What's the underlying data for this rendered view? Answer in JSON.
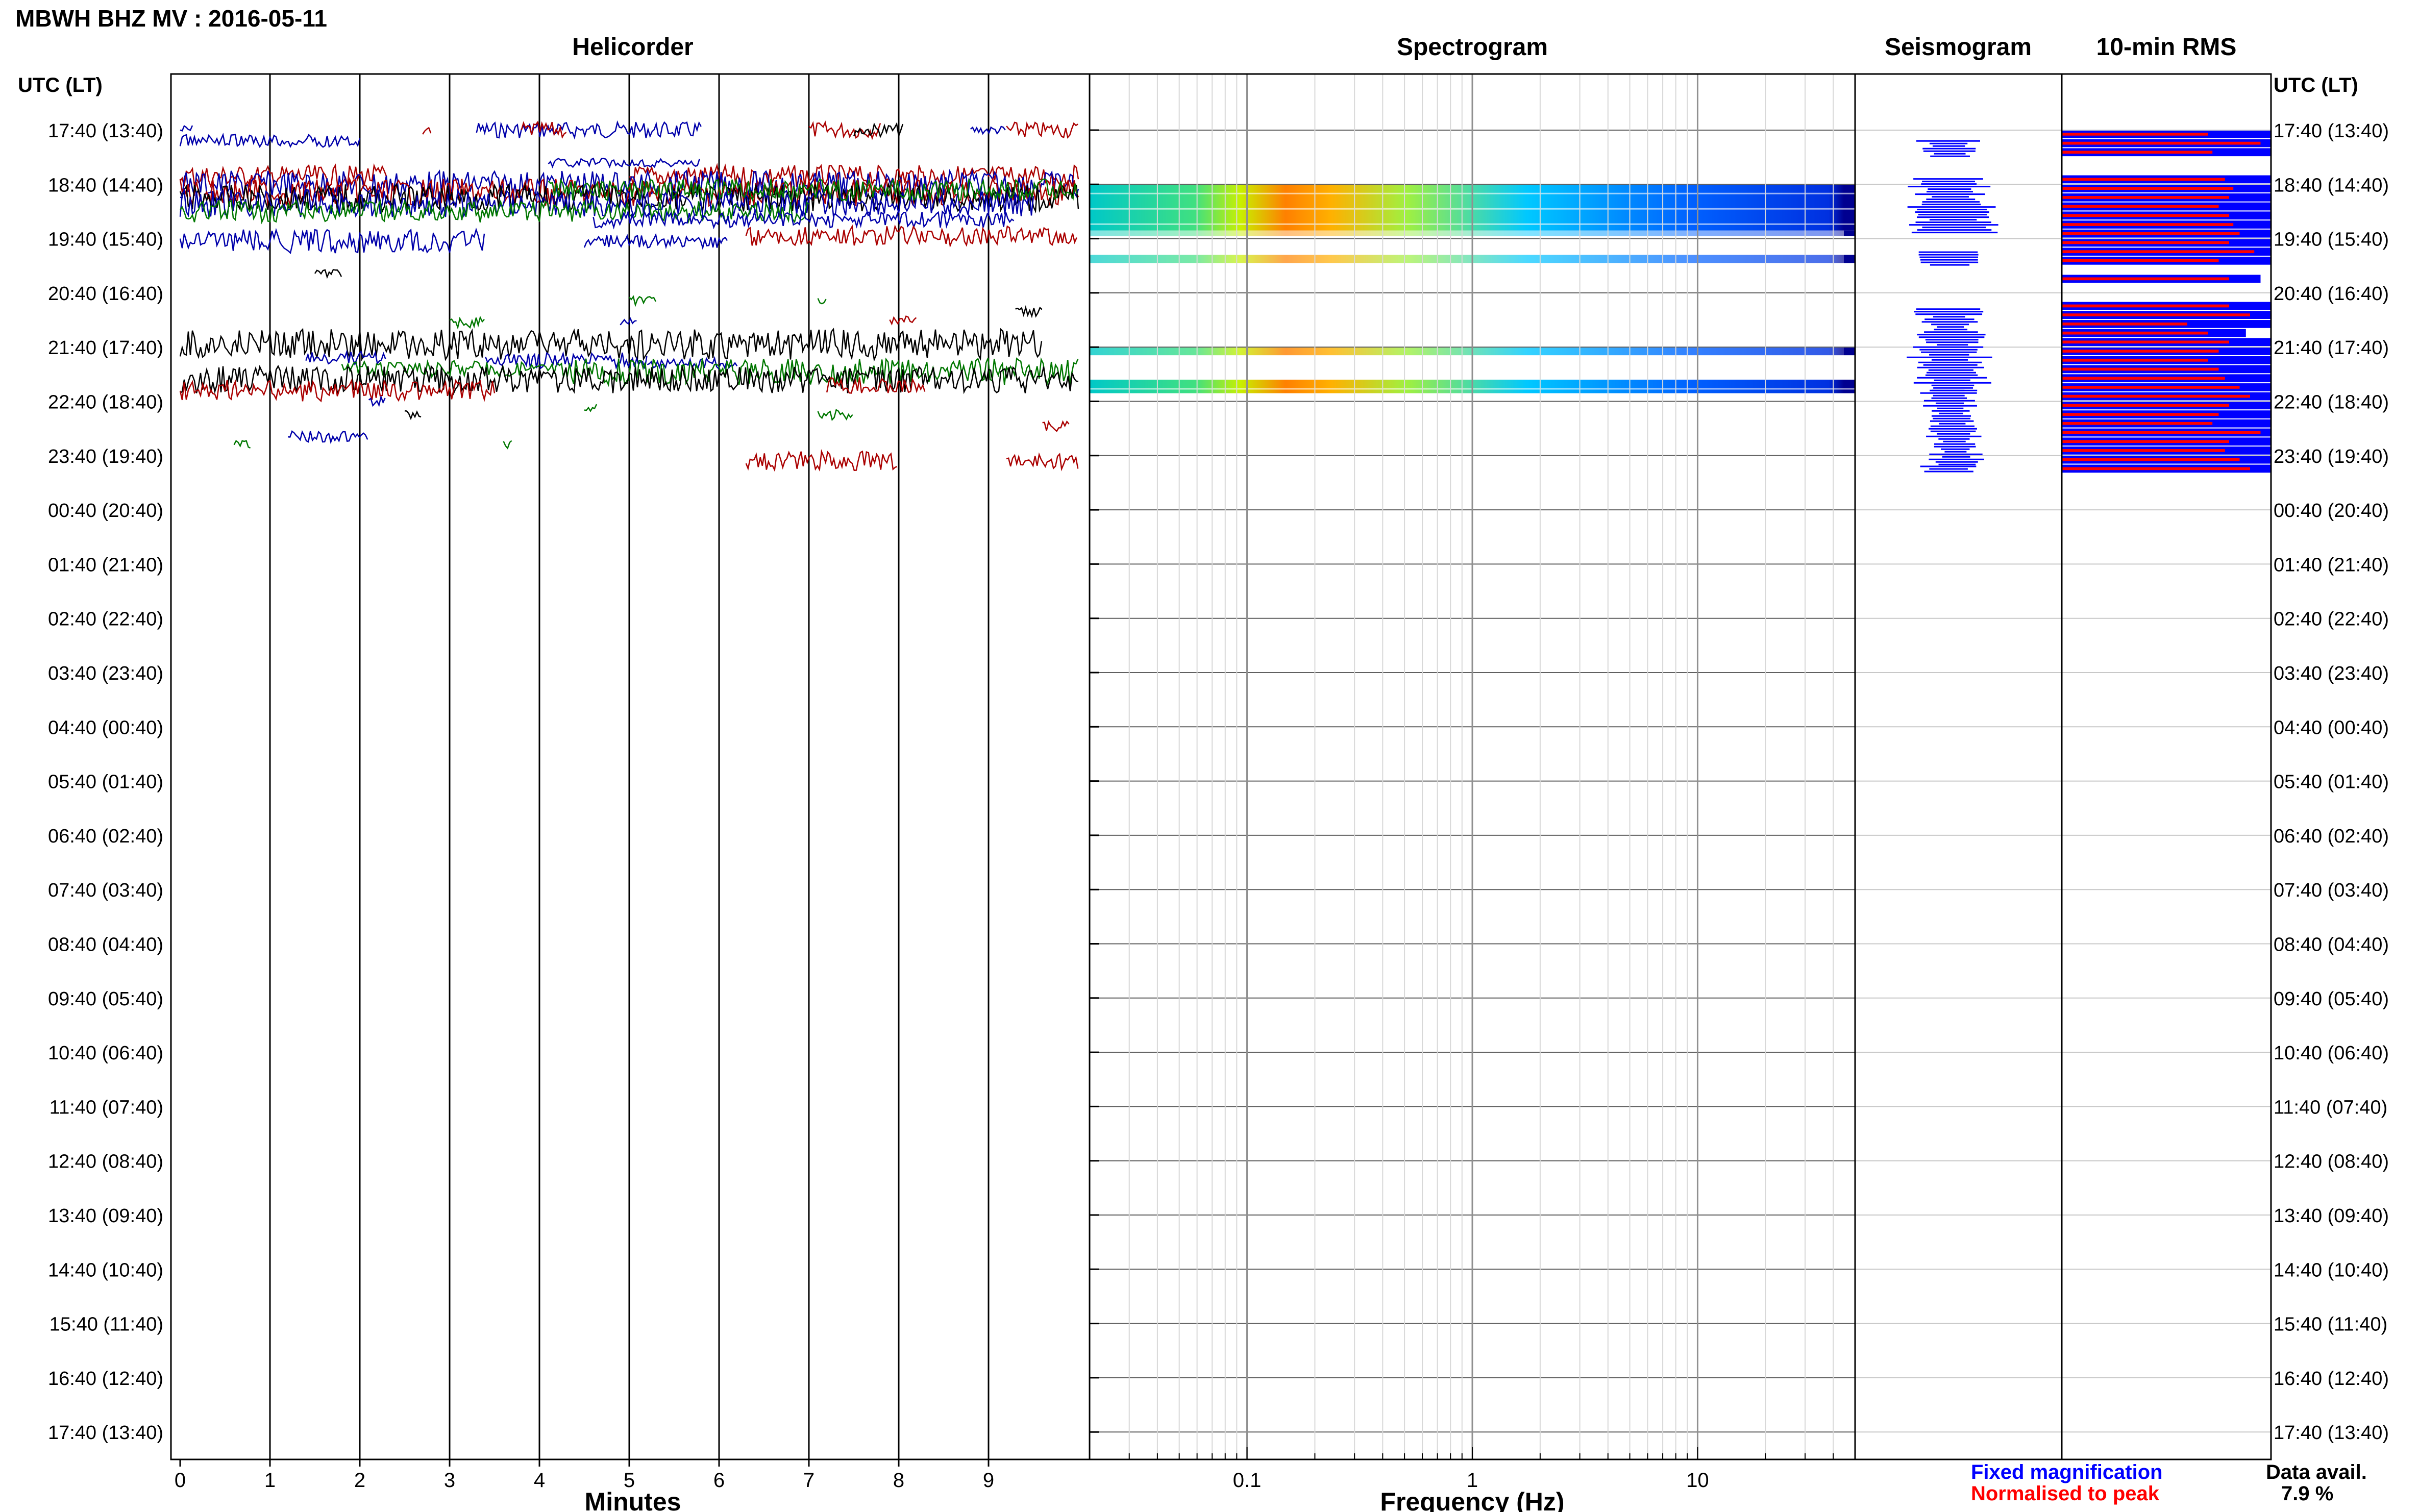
{
  "header": {
    "title": "MBWH BHZ MV : 2016-05-11",
    "time_axis_label_left": "UTC (LT)",
    "time_axis_label_right": "UTC (LT)"
  },
  "panels": {
    "helicorder": "Helicorder",
    "spectrogram": "Spectrogram",
    "seismogram": "Seismogram",
    "rms": "10-min RMS"
  },
  "rows": [
    "17:40 (13:40)",
    "18:40 (14:40)",
    "19:40 (15:40)",
    "20:40 (16:40)",
    "21:40 (17:40)",
    "22:40 (18:40)",
    "23:40 (19:40)",
    "00:40 (20:40)",
    "01:40 (21:40)",
    "02:40 (22:40)",
    "03:40 (23:40)",
    "04:40 (00:40)",
    "05:40 (01:40)",
    "06:40 (02:40)",
    "07:40 (03:40)",
    "08:40 (04:40)",
    "09:40 (05:40)",
    "10:40 (06:40)",
    "11:40 (07:40)",
    "12:40 (08:40)",
    "13:40 (09:40)",
    "14:40 (10:40)",
    "15:40 (11:40)",
    "16:40 (12:40)",
    "17:40 (13:40)"
  ],
  "legend": {
    "fixed": "Fixed magnification",
    "normalised": "Normalised to peak",
    "fixed_color": "#0000ff",
    "normalised_color": "#ff0000",
    "data_avail_label": "Data avail.",
    "data_avail_value": "7.9 %"
  },
  "chart_data": [
    {
      "type": "line",
      "name": "helicorder",
      "title": "Helicorder",
      "xlabel": "Minutes",
      "xlim": [
        0,
        10
      ],
      "xticks": [
        "0",
        "1",
        "2",
        "3",
        "4",
        "5",
        "6",
        "7",
        "8",
        "9"
      ],
      "trace_colors": [
        "#000000",
        "#aa0000",
        "#0000aa",
        "#007700"
      ],
      "traces": [
        {
          "row": 0.0,
          "start": 0.0,
          "end": 0.15,
          "amp": 0.1,
          "color": 2
        },
        {
          "row": 0.0,
          "start": 2.7,
          "end": 2.8,
          "amp": 0.1,
          "color": 1
        },
        {
          "row": 0.0,
          "start": 3.3,
          "end": 5.8,
          "amp": 0.15,
          "color": 2
        },
        {
          "row": 0.0,
          "start": 3.8,
          "end": 4.3,
          "amp": 0.15,
          "color": 1
        },
        {
          "row": 0.0,
          "start": 7.0,
          "end": 7.8,
          "amp": 0.15,
          "color": 1
        },
        {
          "row": 0.0,
          "start": 7.5,
          "end": 8.05,
          "amp": 0.12,
          "color": 0
        },
        {
          "row": 0.0,
          "start": 8.8,
          "end": 9.2,
          "amp": 0.08,
          "color": 2
        },
        {
          "row": 0.0,
          "start": 9.2,
          "end": 10.0,
          "amp": 0.15,
          "color": 1
        },
        {
          "row": 0.85,
          "start": 0.0,
          "end": 2.3,
          "amp": 0.2,
          "color": 1
        },
        {
          "row": 0.85,
          "start": 5.0,
          "end": 10.0,
          "amp": 0.2,
          "color": 1
        },
        {
          "row": 1.0,
          "start": 0.0,
          "end": 10.0,
          "amp": 0.25,
          "color": 2
        },
        {
          "row": 1.15,
          "start": 0.0,
          "end": 10.0,
          "amp": 0.25,
          "color": 1
        },
        {
          "row": 1.25,
          "start": 0.0,
          "end": 10.0,
          "amp": 0.25,
          "color": 0
        },
        {
          "row": 1.35,
          "start": 0.0,
          "end": 9.5,
          "amp": 0.25,
          "color": 2
        },
        {
          "row": 1.5,
          "start": 0.0,
          "end": 7.0,
          "amp": 0.2,
          "color": 3
        },
        {
          "row": 1.65,
          "start": 4.6,
          "end": 9.3,
          "amp": 0.15,
          "color": 2
        },
        {
          "row": 0.6,
          "start": 4.1,
          "end": 5.8,
          "amp": 0.08,
          "color": 2
        },
        {
          "row": 0.2,
          "start": 0.0,
          "end": 2.0,
          "amp": 0.12,
          "color": 2
        },
        {
          "row": 1.1,
          "start": 4.1,
          "end": 10.0,
          "amp": 0.2,
          "color": 3
        },
        {
          "row": 2.05,
          "start": 0.0,
          "end": 3.4,
          "amp": 0.22,
          "color": 2
        },
        {
          "row": 2.05,
          "start": 4.5,
          "end": 6.1,
          "amp": 0.12,
          "color": 2
        },
        {
          "row": 1.95,
          "start": 6.3,
          "end": 10.0,
          "amp": 0.18,
          "color": 1
        },
        {
          "row": 2.65,
          "start": 1.5,
          "end": 1.8,
          "amp": 0.08,
          "color": 0
        },
        {
          "row": 3.15,
          "start": 5.0,
          "end": 5.3,
          "amp": 0.08,
          "color": 3
        },
        {
          "row": 3.15,
          "start": 7.1,
          "end": 7.2,
          "amp": 0.08,
          "color": 3
        },
        {
          "row": 3.35,
          "start": 9.3,
          "end": 9.6,
          "amp": 0.08,
          "color": 0
        },
        {
          "row": 3.55,
          "start": 3.0,
          "end": 3.4,
          "amp": 0.1,
          "color": 3
        },
        {
          "row": 3.55,
          "start": 4.9,
          "end": 5.1,
          "amp": 0.08,
          "color": 2
        },
        {
          "row": 3.5,
          "start": 7.9,
          "end": 8.2,
          "amp": 0.08,
          "color": 1
        },
        {
          "row": 3.95,
          "start": 0.0,
          "end": 9.6,
          "amp": 0.28,
          "color": 0
        },
        {
          "row": 4.2,
          "start": 1.4,
          "end": 2.3,
          "amp": 0.12,
          "color": 2
        },
        {
          "row": 4.25,
          "start": 3.4,
          "end": 5.2,
          "amp": 0.15,
          "color": 2
        },
        {
          "row": 4.3,
          "start": 5.2,
          "end": 6.2,
          "amp": 0.1,
          "color": 2
        },
        {
          "row": 4.4,
          "start": 1.8,
          "end": 4.2,
          "amp": 0.15,
          "color": 3
        },
        {
          "row": 4.45,
          "start": 4.2,
          "end": 10.0,
          "amp": 0.25,
          "color": 3
        },
        {
          "row": 4.6,
          "start": 0.0,
          "end": 10.0,
          "amp": 0.25,
          "color": 0
        },
        {
          "row": 4.8,
          "start": 0.0,
          "end": 3.5,
          "amp": 0.2,
          "color": 1
        },
        {
          "row": 4.7,
          "start": 7.2,
          "end": 8.3,
          "amp": 0.15,
          "color": 1
        },
        {
          "row": 5.0,
          "start": 2.1,
          "end": 2.3,
          "amp": 0.1,
          "color": 2
        },
        {
          "row": 5.25,
          "start": 2.5,
          "end": 2.7,
          "amp": 0.08,
          "color": 0
        },
        {
          "row": 5.25,
          "start": 7.1,
          "end": 7.5,
          "amp": 0.1,
          "color": 3
        },
        {
          "row": 5.1,
          "start": 4.5,
          "end": 4.65,
          "amp": 0.08,
          "color": 3
        },
        {
          "row": 5.45,
          "start": 9.6,
          "end": 9.9,
          "amp": 0.1,
          "color": 1
        },
        {
          "row": 5.65,
          "start": 1.2,
          "end": 2.1,
          "amp": 0.1,
          "color": 2
        },
        {
          "row": 5.8,
          "start": 0.6,
          "end": 0.8,
          "amp": 0.08,
          "color": 3
        },
        {
          "row": 5.8,
          "start": 3.6,
          "end": 3.7,
          "amp": 0.08,
          "color": 3
        },
        {
          "row": 6.1,
          "start": 6.3,
          "end": 8.0,
          "amp": 0.18,
          "color": 1
        },
        {
          "row": 6.1,
          "start": 9.2,
          "end": 10.0,
          "amp": 0.15,
          "color": 1
        }
      ]
    },
    {
      "type": "heatmap",
      "name": "spectrogram",
      "title": "Spectrogram",
      "xlabel": "Frequency (Hz)",
      "xscale": "log",
      "xlim": [
        0.02,
        50
      ],
      "xticks": [
        "0.1",
        "1",
        "10"
      ],
      "peak_hz": 0.25,
      "bands": [
        {
          "row_start": 1.0,
          "row_end": 1.85,
          "intensity": 1.0
        },
        {
          "row_start": 1.85,
          "row_end": 1.95,
          "intensity": 0.5
        },
        {
          "row_start": 2.3,
          "row_end": 2.45,
          "intensity": 0.7
        },
        {
          "row_start": 4.0,
          "row_end": 4.15,
          "intensity": 0.8
        },
        {
          "row_start": 4.6,
          "row_end": 4.85,
          "intensity": 1.0
        }
      ]
    },
    {
      "type": "line",
      "name": "seismogram",
      "title": "Seismogram",
      "segments": [
        {
          "row_start": 0.2,
          "row_end": 0.5,
          "width": 0.35
        },
        {
          "row_start": 0.9,
          "row_end": 1.9,
          "width": 0.45
        },
        {
          "row_start": 2.25,
          "row_end": 2.5,
          "width": 0.3
        },
        {
          "row_start": 3.3,
          "row_end": 4.0,
          "width": 0.35
        },
        {
          "row_start": 4.0,
          "row_end": 4.8,
          "width": 0.45
        },
        {
          "row_start": 4.8,
          "row_end": 6.2,
          "width": 0.3
        },
        {
          "row_start": 6.2,
          "row_end": 6.3,
          "width": 0.45
        }
      ]
    },
    {
      "type": "bar",
      "name": "rms",
      "title": "10-min RMS",
      "series": [
        {
          "name": "Fixed magnification",
          "color": "#0000ff"
        },
        {
          "name": "Normalised to peak",
          "color": "#ff0000"
        }
      ],
      "bars": [
        {
          "row": 0.0,
          "fixed": 1.0,
          "norm": 0.7
        },
        {
          "row": 0.167,
          "fixed": 1.0,
          "norm": 0.95
        },
        {
          "row": 0.333,
          "fixed": 1.0,
          "norm": 0.72
        },
        {
          "row": 0.833,
          "fixed": 1.0,
          "norm": 0.78
        },
        {
          "row": 1.0,
          "fixed": 1.0,
          "norm": 0.82
        },
        {
          "row": 1.167,
          "fixed": 1.0,
          "norm": 0.8
        },
        {
          "row": 1.333,
          "fixed": 1.0,
          "norm": 0.75
        },
        {
          "row": 1.5,
          "fixed": 1.0,
          "norm": 0.8
        },
        {
          "row": 1.667,
          "fixed": 1.0,
          "norm": 0.82
        },
        {
          "row": 1.833,
          "fixed": 1.0,
          "norm": 0.85
        },
        {
          "row": 2.0,
          "fixed": 1.0,
          "norm": 0.8
        },
        {
          "row": 2.167,
          "fixed": 1.0,
          "norm": 0.92
        },
        {
          "row": 2.333,
          "fixed": 1.0,
          "norm": 0.75
        },
        {
          "row": 2.667,
          "fixed": 0.95,
          "norm": 0.8
        },
        {
          "row": 3.167,
          "fixed": 1.0,
          "norm": 0.8
        },
        {
          "row": 3.333,
          "fixed": 1.0,
          "norm": 0.9
        },
        {
          "row": 3.5,
          "fixed": 1.0,
          "norm": 0.6
        },
        {
          "row": 3.667,
          "fixed": 0.88,
          "norm": 0.7
        },
        {
          "row": 3.833,
          "fixed": 1.0,
          "norm": 0.8
        },
        {
          "row": 4.0,
          "fixed": 1.0,
          "norm": 0.75
        },
        {
          "row": 4.167,
          "fixed": 1.0,
          "norm": 0.7
        },
        {
          "row": 4.333,
          "fixed": 1.0,
          "norm": 0.75
        },
        {
          "row": 4.5,
          "fixed": 1.0,
          "norm": 0.78
        },
        {
          "row": 4.667,
          "fixed": 1.0,
          "norm": 0.85
        },
        {
          "row": 4.833,
          "fixed": 1.0,
          "norm": 0.9
        },
        {
          "row": 5.0,
          "fixed": 1.0,
          "norm": 0.8
        },
        {
          "row": 5.167,
          "fixed": 1.0,
          "norm": 0.75
        },
        {
          "row": 5.333,
          "fixed": 1.0,
          "norm": 0.72
        },
        {
          "row": 5.5,
          "fixed": 1.0,
          "norm": 0.95
        },
        {
          "row": 5.667,
          "fixed": 1.0,
          "norm": 0.8
        },
        {
          "row": 5.833,
          "fixed": 1.0,
          "norm": 0.78
        },
        {
          "row": 6.0,
          "fixed": 1.0,
          "norm": 0.85
        },
        {
          "row": 6.167,
          "fixed": 1.0,
          "norm": 0.9
        }
      ]
    }
  ]
}
